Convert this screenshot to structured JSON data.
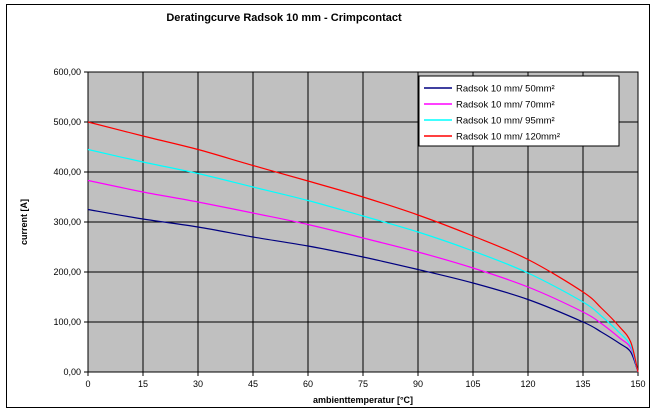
{
  "chart_data": {
    "type": "line",
    "title": "Deratingcurve Radsok 10 mm - Crimpcontact",
    "xlabel": "ambienttemperatur [°C]",
    "ylabel": "current [A]",
    "xlim": [
      0,
      150
    ],
    "ylim": [
      0,
      600
    ],
    "x_ticks": [
      "0",
      "15",
      "30",
      "45",
      "60",
      "75",
      "90",
      "105",
      "120",
      "135",
      "150"
    ],
    "y_ticks": [
      "0,00",
      "100,00",
      "200,00",
      "300,00",
      "400,00",
      "500,00",
      "600,00"
    ],
    "grid": true,
    "plot_background": "#c0c0c0",
    "legend_position": "top-right",
    "x": [
      0,
      15,
      30,
      45,
      60,
      75,
      90,
      105,
      120,
      135,
      140,
      145,
      148,
      150
    ],
    "series": [
      {
        "name": "Radsok 10 mm/ 50mm²",
        "color": "#000080",
        "values": [
          325,
          306,
          290,
          270,
          252,
          230,
          205,
          178,
          145,
          100,
          80,
          57,
          40,
          0
        ]
      },
      {
        "name": "Radsok 10 mm/ 70mm²",
        "color": "#ff00ff",
        "values": [
          383,
          360,
          340,
          318,
          295,
          268,
          240,
          208,
          170,
          120,
          97,
          68,
          48,
          0
        ]
      },
      {
        "name": "Radsok 10 mm/ 95mm²",
        "color": "#00ffff",
        "values": [
          445,
          420,
          397,
          370,
          343,
          312,
          280,
          242,
          198,
          140,
          112,
          78,
          52,
          0
        ]
      },
      {
        "name": "Radsok 10 mm/ 120mm²",
        "color": "#ff0000",
        "values": [
          500,
          472,
          445,
          413,
          382,
          350,
          314,
          272,
          225,
          160,
          128,
          90,
          60,
          0
        ]
      }
    ]
  }
}
